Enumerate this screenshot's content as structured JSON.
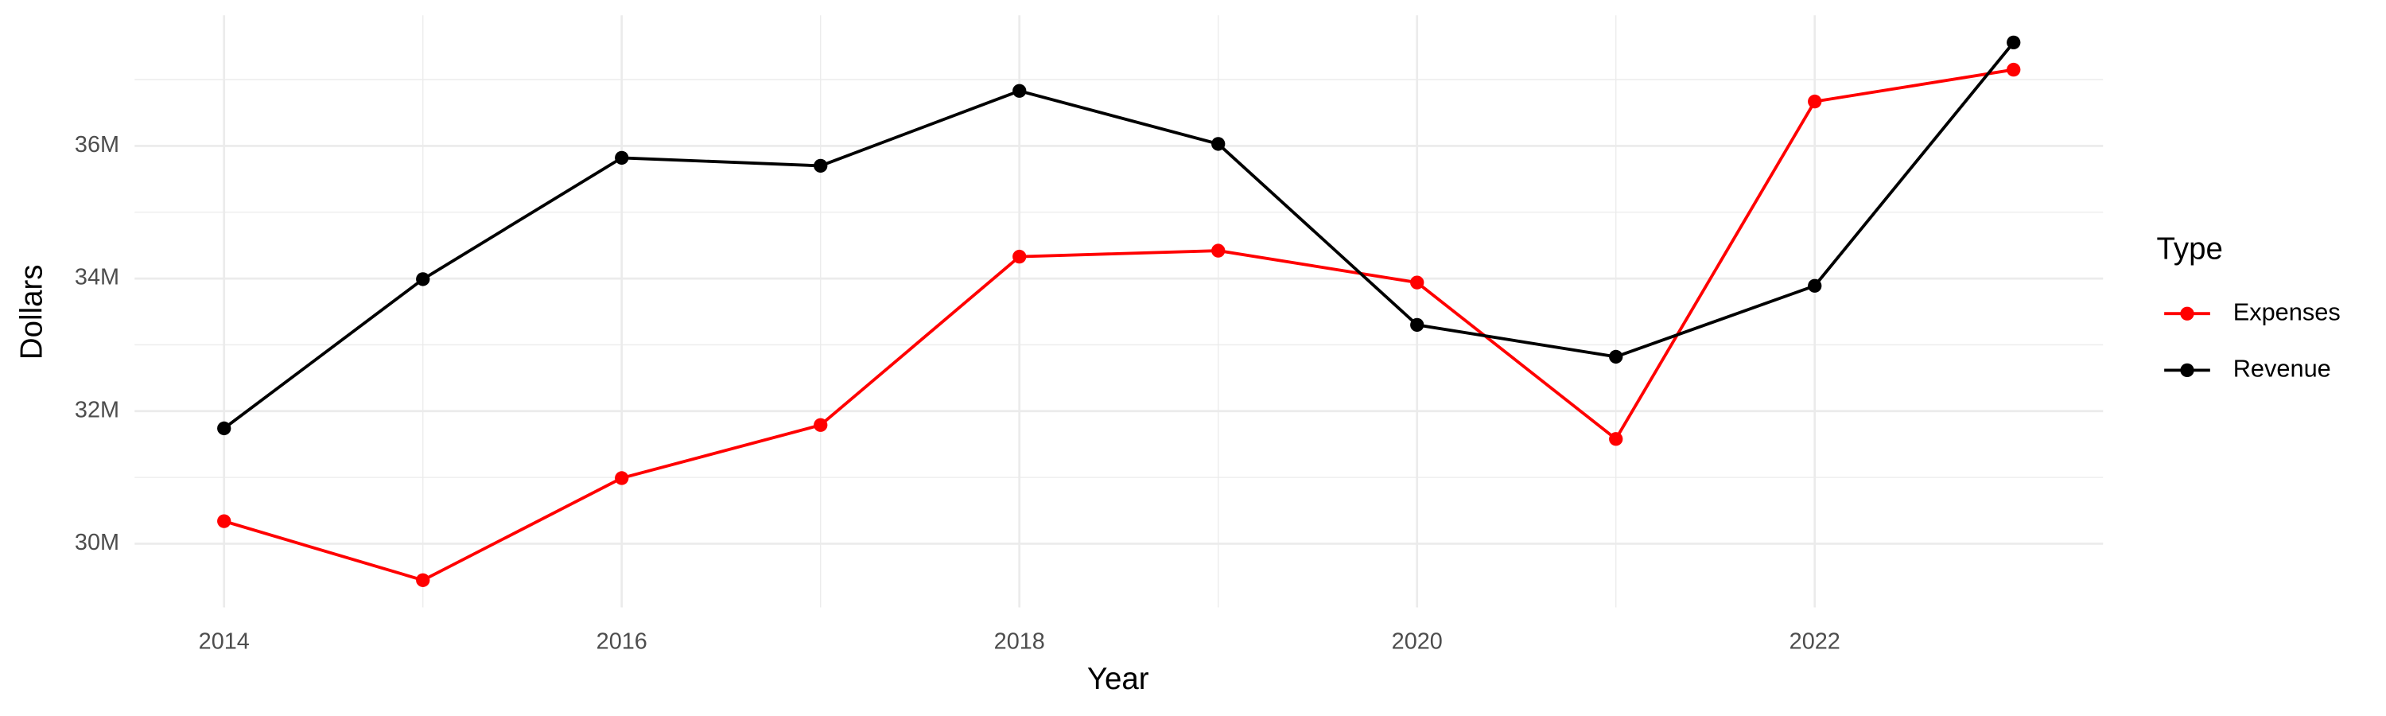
{
  "chart_data": {
    "type": "line",
    "x_label": "Year",
    "y_label": "Dollars",
    "x": [
      2014,
      2015,
      2016,
      2017,
      2018,
      2019,
      2020,
      2021,
      2022,
      2023
    ],
    "series": [
      {
        "name": "Expenses",
        "color": "red",
        "values": [
          30340000,
          29450000,
          30990000,
          31790000,
          34330000,
          34420000,
          33940000,
          31580000,
          36670000,
          37150000
        ]
      },
      {
        "name": "Revenue",
        "color": "black",
        "values": [
          31740000,
          33990000,
          35820000,
          35700000,
          36830000,
          36030000,
          33300000,
          32820000,
          33890000,
          37560000
        ]
      }
    ],
    "xlim": [
      2013.55,
      2023.45
    ],
    "xticks": [
      2014,
      2016,
      2018,
      2020,
      2022
    ],
    "ylim": [
      29040000,
      37970000
    ],
    "yticks": [
      {
        "value": 30000000,
        "label": "30M"
      },
      {
        "value": 32000000,
        "label": "32M"
      },
      {
        "value": 34000000,
        "label": "34M"
      },
      {
        "value": 36000000,
        "label": "36M"
      }
    ],
    "grid": true,
    "legend_title": "Type",
    "legend_position": "right"
  }
}
